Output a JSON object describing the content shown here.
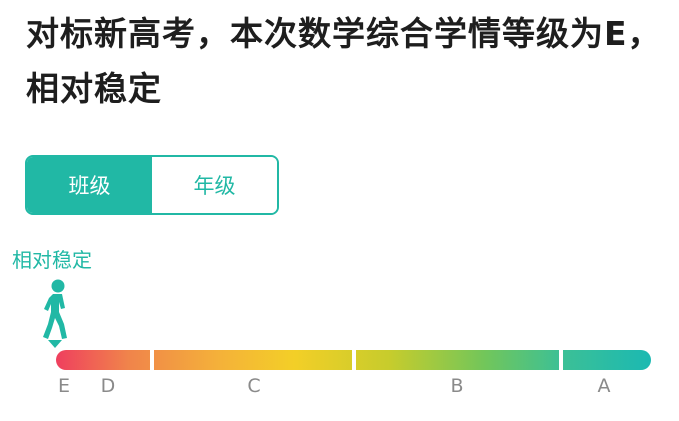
{
  "header": {
    "title": "对标新高考，本次数学综合学情等级为E，相对稳定"
  },
  "toggle": {
    "options": [
      {
        "label": "班级",
        "selected": true
      },
      {
        "label": "年级",
        "selected": false
      }
    ]
  },
  "indicator": {
    "status": "相对稳定",
    "current_grade": "E"
  },
  "scale": {
    "grades": [
      "E",
      "D",
      "C",
      "B",
      "A"
    ]
  },
  "colors": {
    "accent": "#21b8a5",
    "scale_start": "#ef3f5e",
    "scale_mid": "#f3cf27",
    "scale_end": "#1bb9b2"
  }
}
